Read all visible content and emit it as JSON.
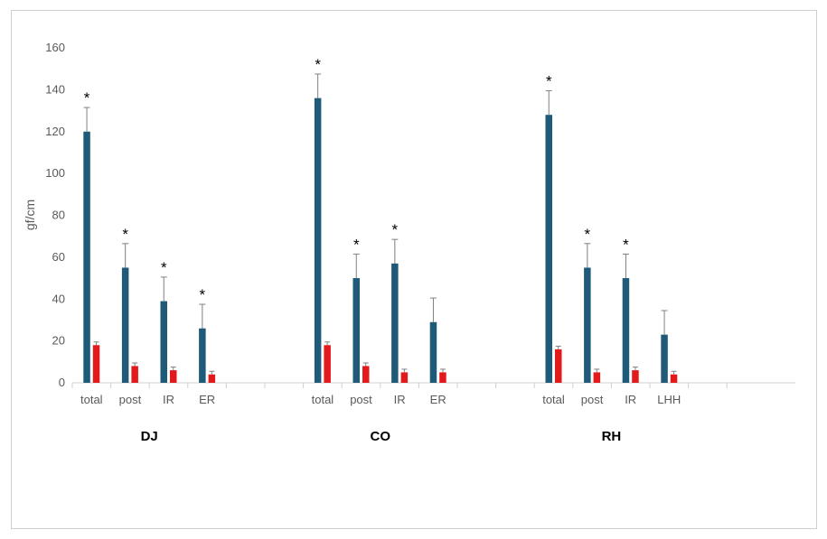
{
  "chart_data": {
    "type": "bar",
    "ylabel": "gf/cm",
    "ylim": [
      0,
      160
    ],
    "yticks": [
      0,
      20,
      40,
      60,
      80,
      100,
      120,
      140,
      160
    ],
    "legend": "none",
    "grid": false,
    "colors": {
      "series1": "#1f5a78",
      "series2": "#e31a1c",
      "error": "#808080",
      "axis": "#d0d0d0"
    },
    "groups": [
      {
        "name": "DJ",
        "categories": [
          "total",
          "post",
          "IR",
          "ER"
        ],
        "series1": [
          120,
          55,
          39,
          26
        ],
        "series1_err": [
          11.5,
          11.5,
          11.5,
          11.5
        ],
        "series2": [
          18,
          8,
          6,
          4
        ],
        "series2_err": [
          1.5,
          1.5,
          1.5,
          1.5
        ],
        "significant": [
          true,
          true,
          true,
          true
        ]
      },
      {
        "name": "CO",
        "categories": [
          "total",
          "post",
          "IR",
          "ER"
        ],
        "series1": [
          136,
          50,
          57,
          29
        ],
        "series1_err": [
          11.5,
          11.5,
          11.5,
          11.5
        ],
        "series2": [
          18,
          8,
          5,
          5
        ],
        "series2_err": [
          1.5,
          1.5,
          1.5,
          1.5
        ],
        "significant": [
          true,
          true,
          true,
          false
        ]
      },
      {
        "name": "RH",
        "categories": [
          "total",
          "post",
          "IR",
          "LHH"
        ],
        "series1": [
          128,
          55,
          50,
          23
        ],
        "series1_err": [
          11.5,
          11.5,
          11.5,
          11.5
        ],
        "series2": [
          16,
          5,
          6,
          4
        ],
        "series2_err": [
          1.5,
          1.5,
          1.5,
          1.5
        ],
        "significant": [
          true,
          true,
          true,
          false
        ]
      }
    ],
    "significance_marker": "*"
  }
}
